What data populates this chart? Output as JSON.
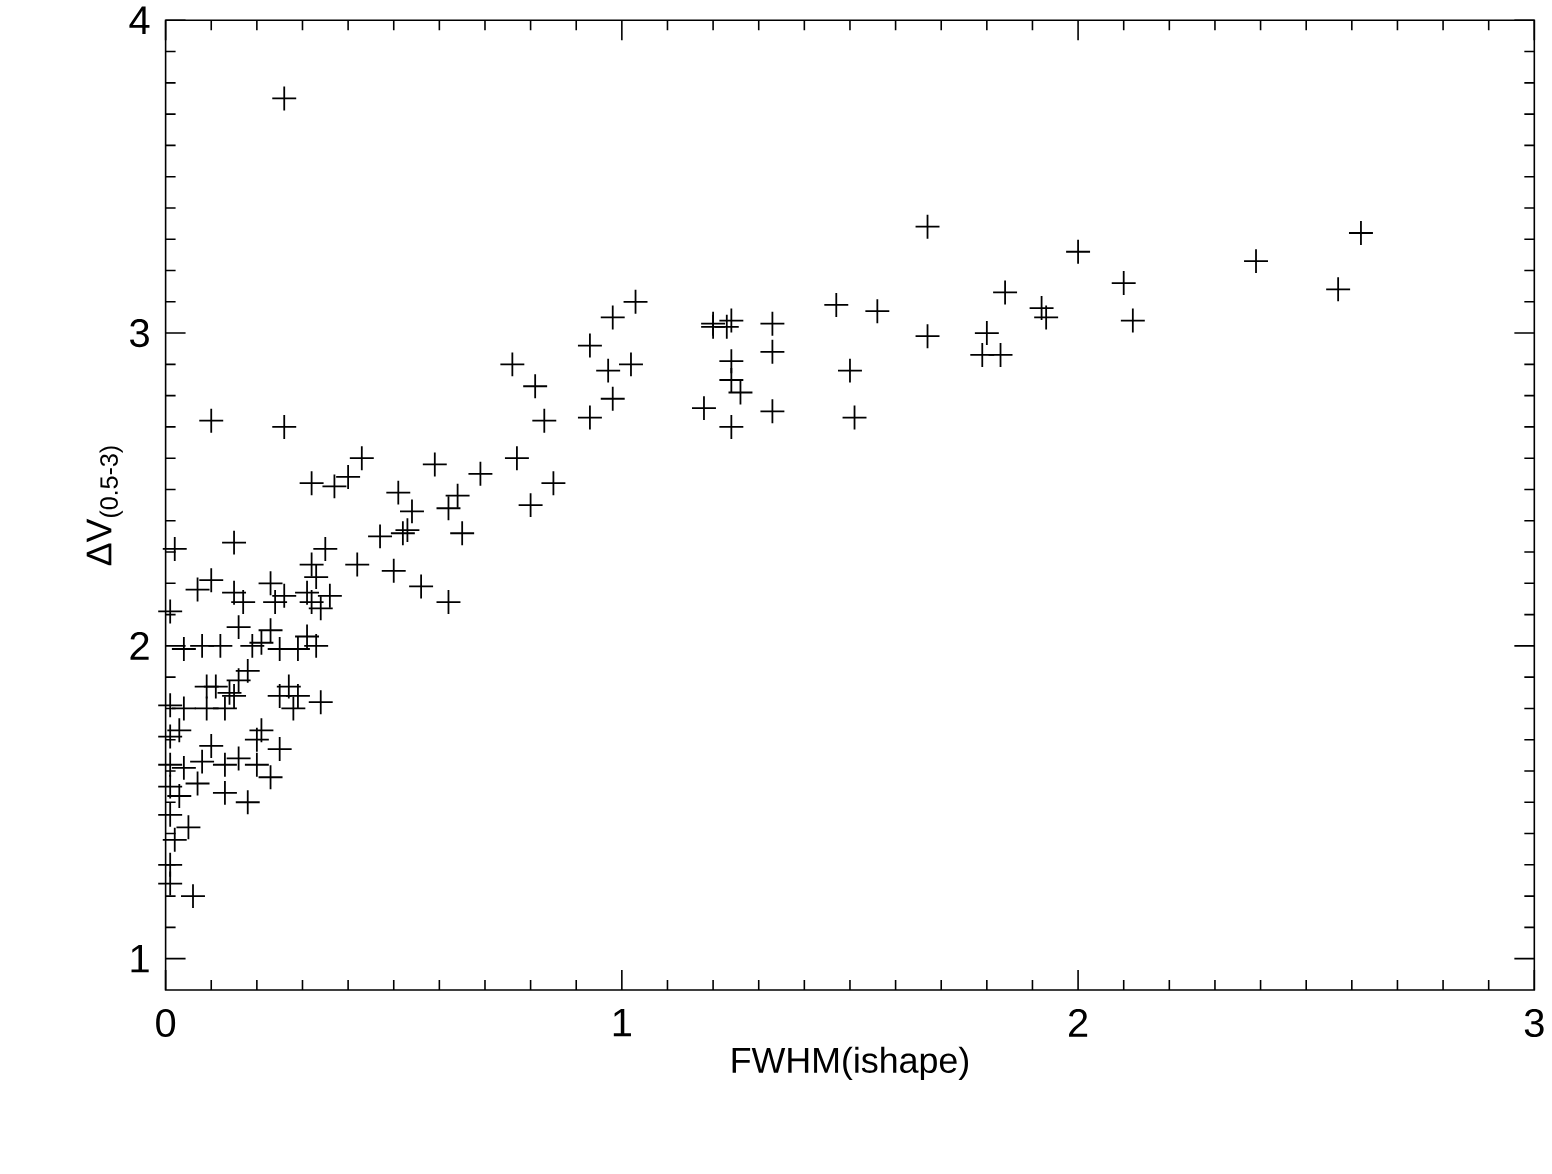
{
  "chart_data": {
    "type": "scatter",
    "xlabel": "FWHM(ishape)",
    "ylabel": "ΔV$_{(0.5-3)}$",
    "xlim": [
      0,
      3
    ],
    "ylim": [
      0.9,
      4
    ],
    "xticks": [
      0,
      1,
      2,
      3
    ],
    "yticks": [
      1,
      2,
      3,
      4
    ],
    "grid": false,
    "marker": "cross",
    "series": [
      {
        "color": "#000000",
        "x": [
          0.26,
          0.1,
          0.26,
          0.32,
          0.37,
          0.4,
          0.43,
          0.51,
          0.59,
          0.64,
          0.69,
          0.77,
          0.85,
          0.76,
          0.81,
          0.83,
          0.93,
          0.98,
          1.03,
          0.97,
          1.02,
          0.98,
          0.93,
          1.2,
          1.67,
          2.0,
          1.84,
          1.92,
          1.93,
          2.1,
          2.12,
          2.39,
          2.57,
          2.62,
          1.67,
          1.8,
          1.79,
          1.83,
          1.47,
          1.56,
          1.5,
          1.51,
          1.33,
          1.33,
          1.33,
          1.2,
          1.24,
          1.23,
          1.24,
          1.24,
          1.26,
          1.18,
          1.24,
          0.8,
          0.62,
          0.54,
          0.53,
          0.52,
          0.65,
          0.47,
          0.35,
          0.42,
          0.32,
          0.5,
          0.33,
          0.56,
          0.62,
          0.02,
          0.15,
          0.1,
          0.07,
          0.15,
          0.17,
          0.23,
          0.26,
          0.24,
          0.31,
          0.36,
          0.32,
          0.34,
          0.01,
          0.16,
          0.23,
          0.21,
          0.12,
          0.04,
          0.08,
          0.19,
          0.25,
          0.29,
          0.33,
          0.31,
          0.18,
          0.16,
          0.09,
          0.11,
          0.14,
          0.15,
          0.09,
          0.13,
          0.25,
          0.27,
          0.29,
          0.34,
          0.28,
          0.01,
          0.04,
          0.03,
          0.01,
          0.21,
          0.2,
          0.25,
          0.1,
          0.13,
          0.16,
          0.2,
          0.23,
          0.08,
          0.01,
          0.04,
          0.07,
          0.01,
          0.13,
          0.18,
          0.03,
          0.05,
          0.01,
          0.02,
          0.01,
          0.01,
          0.06
        ],
        "values": [
          3.75,
          2.72,
          2.7,
          2.52,
          2.51,
          2.54,
          2.6,
          2.49,
          2.58,
          2.48,
          2.55,
          2.6,
          2.52,
          2.9,
          2.83,
          2.72,
          2.96,
          3.05,
          3.1,
          2.88,
          2.9,
          2.79,
          2.73,
          3.02,
          3.34,
          3.26,
          3.13,
          3.08,
          3.05,
          3.16,
          3.04,
          3.23,
          3.14,
          3.32,
          2.99,
          3.0,
          2.93,
          2.93,
          3.09,
          3.07,
          2.88,
          2.73,
          3.03,
          2.94,
          2.75,
          3.03,
          3.04,
          3.02,
          2.91,
          2.85,
          2.81,
          2.76,
          2.7,
          2.45,
          2.44,
          2.43,
          2.37,
          2.36,
          2.36,
          2.35,
          2.31,
          2.26,
          2.26,
          2.24,
          2.22,
          2.19,
          2.14,
          2.31,
          2.33,
          2.21,
          2.18,
          2.17,
          2.14,
          2.2,
          2.16,
          2.14,
          2.17,
          2.16,
          2.14,
          2.12,
          2.11,
          2.06,
          2.05,
          2.01,
          2.0,
          1.99,
          2.0,
          2.0,
          1.99,
          1.99,
          2.0,
          2.03,
          1.92,
          1.89,
          1.87,
          1.87,
          1.85,
          1.84,
          1.8,
          1.8,
          1.84,
          1.87,
          1.84,
          1.82,
          1.8,
          1.81,
          1.8,
          1.73,
          1.71,
          1.73,
          1.7,
          1.67,
          1.68,
          1.62,
          1.64,
          1.62,
          1.58,
          1.63,
          1.62,
          1.61,
          1.56,
          1.55,
          1.53,
          1.5,
          1.52,
          1.42,
          1.46,
          1.38,
          1.3,
          1.24,
          1.2
        ]
      }
    ]
  }
}
